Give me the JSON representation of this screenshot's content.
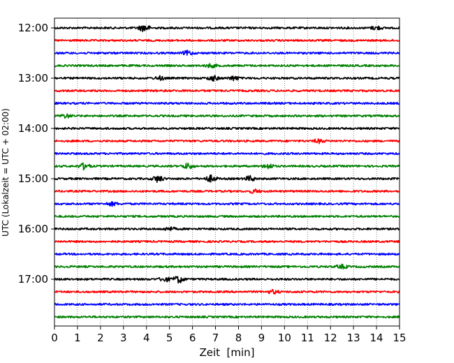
{
  "chart_data": {
    "type": "line",
    "title": "",
    "xlabel": "Zeit  [min]",
    "ylabel": "UTC (Lokalzeit = UTC + 02:00)",
    "xlim": [
      0,
      15
    ],
    "x_ticks": [
      "0",
      "1",
      "2",
      "3",
      "4",
      "5",
      "6",
      "7",
      "8",
      "9",
      "10",
      "11",
      "12",
      "13",
      "14",
      "15"
    ],
    "y_ticks": [
      "12:00",
      "13:00",
      "14:00",
      "15:00",
      "16:00",
      "17:00"
    ],
    "grid": "vertical dotted at each minute",
    "colors": [
      "#000000",
      "#ff0000",
      "#0000ff",
      "#008000"
    ],
    "traces": [
      {
        "start": "12:00",
        "color": "#000000",
        "events": [
          {
            "t": 3.9,
            "amp": 1.0
          },
          {
            "t": 14.0,
            "amp": 0.5
          }
        ]
      },
      {
        "start": "12:15",
        "color": "#ff0000",
        "events": []
      },
      {
        "start": "12:30",
        "color": "#0000ff",
        "events": [
          {
            "t": 5.8,
            "amp": 0.6
          }
        ]
      },
      {
        "start": "12:45",
        "color": "#008000",
        "events": [
          {
            "t": 6.8,
            "amp": 0.5
          }
        ]
      },
      {
        "start": "13:00",
        "color": "#000000",
        "events": [
          {
            "t": 4.6,
            "amp": 0.5
          },
          {
            "t": 6.9,
            "amp": 0.7
          },
          {
            "t": 7.8,
            "amp": 0.6
          }
        ]
      },
      {
        "start": "13:15",
        "color": "#ff0000",
        "events": []
      },
      {
        "start": "13:30",
        "color": "#0000ff",
        "events": []
      },
      {
        "start": "13:45",
        "color": "#008000",
        "events": [
          {
            "t": 0.5,
            "amp": 0.5
          }
        ]
      },
      {
        "start": "14:00",
        "color": "#000000",
        "events": []
      },
      {
        "start": "14:15",
        "color": "#ff0000",
        "events": [
          {
            "t": 11.5,
            "amp": 0.5
          }
        ]
      },
      {
        "start": "14:30",
        "color": "#0000ff",
        "events": []
      },
      {
        "start": "14:45",
        "color": "#008000",
        "events": [
          {
            "t": 1.3,
            "amp": 0.9
          },
          {
            "t": 5.8,
            "amp": 0.8
          },
          {
            "t": 9.3,
            "amp": 0.7
          }
        ]
      },
      {
        "start": "15:00",
        "color": "#000000",
        "events": [
          {
            "t": 4.5,
            "amp": 0.9
          },
          {
            "t": 6.8,
            "amp": 0.9
          },
          {
            "t": 8.5,
            "amp": 0.7
          }
        ]
      },
      {
        "start": "15:15",
        "color": "#ff0000",
        "events": [
          {
            "t": 8.7,
            "amp": 0.5
          }
        ]
      },
      {
        "start": "15:30",
        "color": "#0000ff",
        "events": [
          {
            "t": 2.5,
            "amp": 0.5
          }
        ]
      },
      {
        "start": "15:45",
        "color": "#008000",
        "events": []
      },
      {
        "start": "16:00",
        "color": "#000000",
        "events": [
          {
            "t": 5.0,
            "amp": 0.5
          }
        ]
      },
      {
        "start": "16:15",
        "color": "#ff0000",
        "events": []
      },
      {
        "start": "16:30",
        "color": "#0000ff",
        "events": []
      },
      {
        "start": "16:45",
        "color": "#008000",
        "events": [
          {
            "t": 12.5,
            "amp": 0.5
          }
        ]
      },
      {
        "start": "17:00",
        "color": "#000000",
        "events": [
          {
            "t": 4.8,
            "amp": 0.6
          },
          {
            "t": 5.4,
            "amp": 1.0
          }
        ]
      },
      {
        "start": "17:15",
        "color": "#ff0000",
        "events": [
          {
            "t": 9.5,
            "amp": 0.5
          }
        ]
      },
      {
        "start": "17:30",
        "color": "#0000ff",
        "events": []
      },
      {
        "start": "17:45",
        "color": "#008000",
        "events": []
      }
    ]
  }
}
